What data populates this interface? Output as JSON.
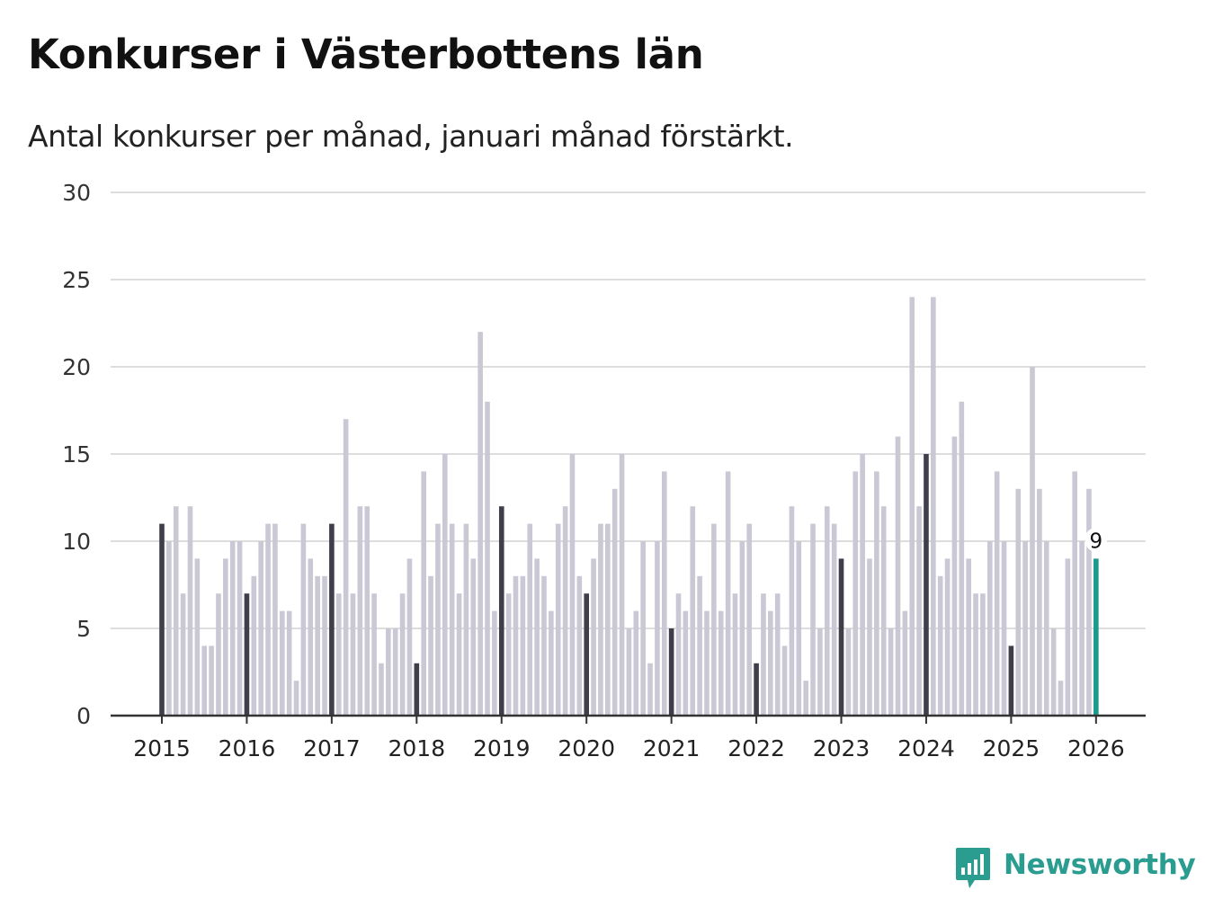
{
  "header": {
    "title": "Konkurser i Västerbottens län",
    "subtitle": "Antal konkurser per månad, januari månad förstärkt."
  },
  "brand": {
    "name": "Newsworthy",
    "icon": "bar-chart-speech-bubble-icon"
  },
  "colors": {
    "january": "#3f3f4c",
    "month": "#c9c8d4",
    "latest": "#1a9a8c",
    "grid": "#dddddd",
    "axis": "#333333",
    "brand": "#2a9d90"
  },
  "chart_data": {
    "type": "bar",
    "title": "Konkurser i Västerbottens län",
    "subtitle": "Antal konkurser per månad, januari månad förstärkt.",
    "xlabel": "",
    "ylabel": "",
    "ylim": [
      0,
      30
    ],
    "yticks": [
      "0",
      "5",
      "10",
      "15",
      "20",
      "25",
      "30"
    ],
    "xticks": [
      "2015",
      "2016",
      "2017",
      "2018",
      "2019",
      "2020",
      "2021",
      "2022",
      "2023",
      "2024",
      "2025",
      "2026"
    ],
    "grid": true,
    "first_month": "2015-01",
    "latest_label": "9",
    "series": [
      {
        "year": "2015",
        "values": [
          11,
          10,
          12,
          7,
          12,
          9,
          4,
          4,
          7,
          9,
          10,
          10
        ]
      },
      {
        "year": "2016",
        "values": [
          7,
          8,
          10,
          11,
          11,
          6,
          6,
          2,
          11,
          9,
          8,
          8
        ]
      },
      {
        "year": "2017",
        "values": [
          11,
          7,
          17,
          7,
          12,
          12,
          7,
          3,
          5,
          5,
          7,
          9
        ]
      },
      {
        "year": "2018",
        "values": [
          3,
          14,
          8,
          11,
          15,
          11,
          7,
          11,
          9,
          22,
          18,
          6
        ]
      },
      {
        "year": "2019",
        "values": [
          12,
          7,
          8,
          8,
          11,
          9,
          8,
          6,
          11,
          12,
          15,
          8
        ]
      },
      {
        "year": "2020",
        "values": [
          7,
          9,
          11,
          11,
          13,
          15,
          5,
          6,
          10,
          3,
          10,
          14
        ]
      },
      {
        "year": "2021",
        "values": [
          5,
          7,
          6,
          12,
          8,
          6,
          11,
          6,
          14,
          7,
          10,
          11
        ]
      },
      {
        "year": "2022",
        "values": [
          3,
          7,
          6,
          7,
          4,
          12,
          10,
          2,
          11,
          5,
          12,
          11
        ]
      },
      {
        "year": "2023",
        "values": [
          9,
          5,
          14,
          15,
          9,
          14,
          12,
          5,
          16,
          6,
          24,
          12
        ]
      },
      {
        "year": "2024",
        "values": [
          15,
          24,
          8,
          9,
          16,
          18,
          9,
          7,
          7,
          10,
          14,
          10
        ]
      },
      {
        "year": "2025",
        "values": [
          4,
          13,
          10,
          20,
          13,
          10,
          5,
          2,
          9,
          14,
          10,
          13
        ]
      },
      {
        "year": "2026",
        "values": [
          9
        ]
      }
    ]
  }
}
